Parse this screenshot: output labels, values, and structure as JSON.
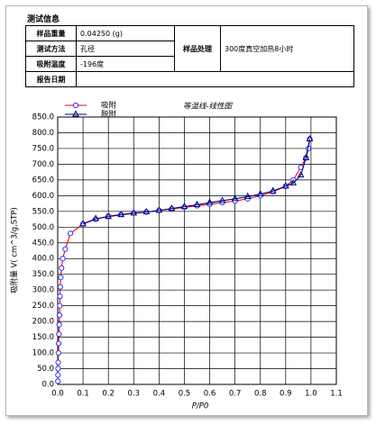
{
  "header": {
    "title": "测试信息"
  },
  "table": {
    "rows": [
      [
        "样品重量",
        "0.04250 (g)"
      ],
      [
        "测试方法",
        "孔径"
      ],
      [
        "吸附温度",
        "-196度"
      ],
      [
        "报告日期"
      ]
    ],
    "side": [
      "样品处理",
      "300度真空加热8小时"
    ]
  },
  "chart_data": {
    "type": "line",
    "title": "等温线-线性图",
    "xlabel": "P/P0",
    "ylabel": "吸附量 V( cm^3/g,STP)",
    "xlim": [
      0,
      1.1
    ],
    "ylim": [
      0,
      850
    ],
    "grid": true,
    "legend": "upper left",
    "xticks": [
      {
        "value": 0,
        "label": "0.0"
      },
      {
        "value": 0.1,
        "label": "0.1"
      },
      {
        "value": 0.2,
        "label": "0.2"
      },
      {
        "value": 0.3,
        "label": "0.3"
      },
      {
        "value": 0.4,
        "label": "0.4"
      },
      {
        "value": 0.5,
        "label": "0.5"
      },
      {
        "value": 0.6,
        "label": "0.6"
      },
      {
        "value": 0.7,
        "label": "0.7"
      },
      {
        "value": 0.8,
        "label": "0.8"
      },
      {
        "value": 0.9,
        "label": "0.9"
      },
      {
        "value": 1,
        "label": "1.0"
      },
      {
        "value": 1.1,
        "label": "1.1"
      }
    ],
    "yticks": [
      {
        "value": 0,
        "label": "0.0"
      },
      {
        "value": 50,
        "label": "50.0"
      },
      {
        "value": 100,
        "label": "100.0"
      },
      {
        "value": 150,
        "label": "150.0"
      },
      {
        "value": 200,
        "label": "200.0"
      },
      {
        "value": 250,
        "label": "250.0"
      },
      {
        "value": 300,
        "label": "300.0"
      },
      {
        "value": 350,
        "label": "350.0"
      },
      {
        "value": 400,
        "label": "400.0"
      },
      {
        "value": 450,
        "label": "450.0"
      },
      {
        "value": 500,
        "label": "500.0"
      },
      {
        "value": 550,
        "label": "550.0"
      },
      {
        "value": 600,
        "label": "600.0"
      },
      {
        "value": 650,
        "label": "650.0"
      },
      {
        "value": 700,
        "label": "700.0"
      },
      {
        "value": 750,
        "label": "750.0"
      },
      {
        "value": 800,
        "label": "800.0"
      },
      {
        "value": 850,
        "label": "850.0"
      }
    ],
    "series": [
      {
        "name": "吸附",
        "color": "#ff0000",
        "marker": "circle",
        "marker_color": "#3333ff",
        "x": [
          0.0005,
          0.001,
          0.0015,
          0.002,
          0.003,
          0.004,
          0.005,
          0.006,
          0.007,
          0.008,
          0.009,
          0.01,
          0.012,
          0.015,
          0.02,
          0.03,
          0.05,
          0.1,
          0.15,
          0.2,
          0.25,
          0.3,
          0.35,
          0.4,
          0.45,
          0.5,
          0.55,
          0.6,
          0.65,
          0.7,
          0.75,
          0.8,
          0.85,
          0.9,
          0.93,
          0.96,
          0.98,
          0.99,
          0.995
        ],
        "values": [
          10,
          30,
          50,
          70,
          100,
          130,
          160,
          190,
          220,
          250,
          280,
          310,
          340,
          370,
          400,
          430,
          480,
          510,
          525,
          535,
          540,
          545,
          548,
          553,
          558,
          563,
          568,
          573,
          578,
          583,
          590,
          600,
          612,
          630,
          650,
          690,
          720,
          750,
          780
        ]
      },
      {
        "name": "脱附",
        "color": "#000080",
        "marker": "triangle",
        "marker_color": "#000080",
        "x": [
          0.995,
          0.98,
          0.96,
          0.93,
          0.9,
          0.85,
          0.8,
          0.75,
          0.7,
          0.65,
          0.6,
          0.55,
          0.5,
          0.45,
          0.4,
          0.35,
          0.3,
          0.25,
          0.2,
          0.15,
          0.1
        ],
        "values": [
          780,
          720,
          665,
          640,
          630,
          615,
          605,
          597,
          590,
          584,
          578,
          571,
          565,
          559,
          553,
          548,
          544,
          539,
          533,
          527,
          510
        ]
      }
    ]
  }
}
